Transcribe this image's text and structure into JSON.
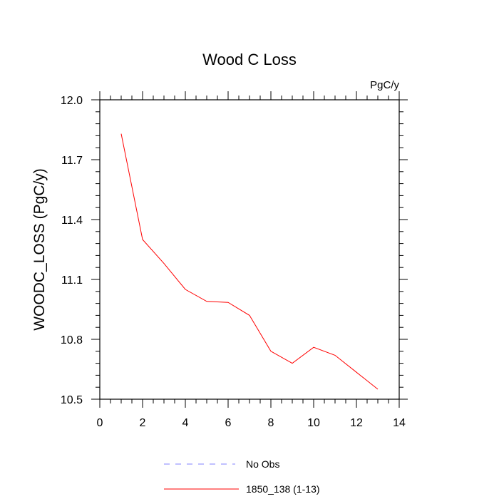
{
  "chart_data": {
    "type": "line",
    "title": "Wood C Loss",
    "units_label": "PgC/y",
    "xlabel": "",
    "ylabel": "WOODC_LOSS  (PgC/y)",
    "xlim": [
      0,
      14
    ],
    "ylim": [
      10.5,
      12.0
    ],
    "x_ticks": [
      0,
      2,
      4,
      6,
      8,
      10,
      12,
      14
    ],
    "x_tick_labels": [
      "0",
      "2",
      "4",
      "6",
      "8",
      "10",
      "12",
      "14"
    ],
    "y_ticks": [
      10.5,
      10.8,
      11.1,
      11.4,
      11.7,
      12.0
    ],
    "y_tick_labels": [
      "10.5",
      "10.8",
      "11.1",
      "11.4",
      "11.7",
      "12.0"
    ],
    "grid": false,
    "legend_position": "bottom",
    "series": [
      {
        "name": "1850_138 (1-13)",
        "color": "#ff0000",
        "style": "solid",
        "x": [
          1,
          2,
          3,
          4,
          5,
          6,
          7,
          8,
          9,
          10,
          11,
          12,
          13
        ],
        "y": [
          11.83,
          11.3,
          11.18,
          11.05,
          10.99,
          10.985,
          10.92,
          10.74,
          10.68,
          10.76,
          10.72,
          10.635,
          10.55
        ]
      }
    ],
    "legend": [
      {
        "label": "No Obs",
        "color": "#8080ff",
        "style": "dashed"
      },
      {
        "label": "1850_138 (1-13)",
        "color": "#ff0000",
        "style": "solid"
      }
    ]
  }
}
